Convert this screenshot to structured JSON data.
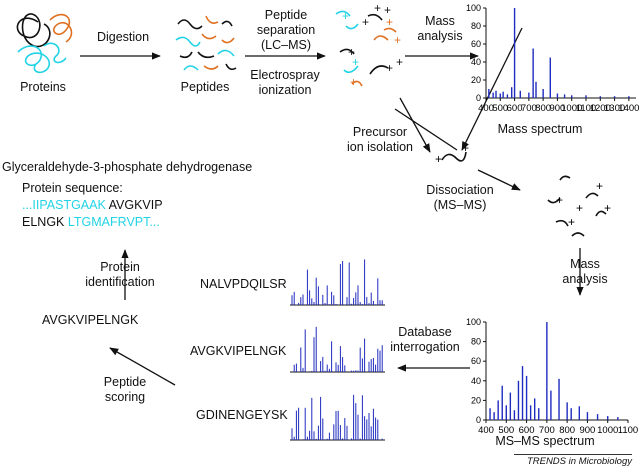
{
  "labels": {
    "proteins": "Proteins",
    "digestion": "Digestion",
    "peptides": "Peptides",
    "separation_line1": "Peptide",
    "separation_line2": "separation",
    "separation_line3": "(LC–MS)",
    "electrospray_line1": "Electrospray",
    "electrospray_line2": "ionization",
    "mass_line1": "Mass",
    "mass_line2": "analysis",
    "mass_spectrum": "Mass spectrum",
    "precursor_line1": "Precursor",
    "precursor_line2": "ion isolation",
    "dissociation_line1": "Dissociation",
    "dissociation_line2": "(MS–MS)",
    "mass2_line1": "Mass",
    "mass2_line2": "analysis",
    "database_line1": "Database",
    "database_line2": "interrogation",
    "msms_spectrum": "MS–MS spectrum",
    "identification_line1": "Protein",
    "identification_line2": "identification",
    "scoring_line1": "Peptide",
    "scoring_line2": "scoring"
  },
  "identification": {
    "protein_name": "Glyceraldehyde-3-phosphate dehydrogenase",
    "sequence_heading": "Protein sequence:",
    "seq_left": "...IIPASTGAAK",
    "seq_match1": "AVGKVIP",
    "seq_match2": "ELNGK",
    "seq_right": "LTGMAFRVPT...",
    "best_peptide": "AVGKVIPELNGK"
  },
  "candidates": [
    {
      "name": "NALVPDQILSR"
    },
    {
      "name": "AVGKVIPELNGK"
    },
    {
      "name": "GDINENGEYSK"
    }
  ],
  "credit": "TRENDS in Microbiology",
  "colors": {
    "spectrum": "#1f2bbf",
    "highlight": "#22d3e6",
    "orange": "#e07020"
  },
  "chart_data": [
    {
      "type": "bar",
      "xlim": [
        400,
        1450
      ],
      "ylim": [
        0,
        100
      ],
      "x_ticks": [
        400,
        500,
        600,
        700,
        800,
        900,
        1000,
        1100,
        1200,
        1300,
        1400
      ],
      "y_ticks": [
        0,
        20,
        40,
        60,
        80,
        100
      ],
      "peaks": [
        [
          420,
          10
        ],
        [
          450,
          6
        ],
        [
          470,
          8
        ],
        [
          500,
          5
        ],
        [
          520,
          7
        ],
        [
          550,
          4
        ],
        [
          580,
          12
        ],
        [
          600,
          100
        ],
        [
          640,
          8
        ],
        [
          700,
          6
        ],
        [
          730,
          55
        ],
        [
          750,
          18
        ],
        [
          800,
          10
        ],
        [
          850,
          45
        ],
        [
          900,
          5
        ],
        [
          950,
          4
        ],
        [
          1000,
          3
        ],
        [
          1100,
          3
        ],
        [
          1200,
          2
        ],
        [
          1300,
          2
        ],
        [
          1400,
          2
        ]
      ]
    },
    {
      "type": "bar",
      "xlim": [
        400,
        1100
      ],
      "ylim": [
        0,
        100
      ],
      "x_ticks": [
        400,
        500,
        600,
        700,
        800,
        900,
        1000,
        1100
      ],
      "y_ticks": [
        0,
        20,
        40,
        60,
        80,
        100
      ],
      "peaks": [
        [
          420,
          12
        ],
        [
          440,
          8
        ],
        [
          460,
          20
        ],
        [
          480,
          35
        ],
        [
          500,
          15
        ],
        [
          520,
          28
        ],
        [
          540,
          10
        ],
        [
          560,
          40
        ],
        [
          580,
          55
        ],
        [
          600,
          45
        ],
        [
          620,
          15
        ],
        [
          640,
          22
        ],
        [
          660,
          12
        ],
        [
          700,
          100
        ],
        [
          720,
          30
        ],
        [
          760,
          42
        ],
        [
          800,
          18
        ],
        [
          820,
          12
        ],
        [
          860,
          14
        ],
        [
          900,
          8
        ],
        [
          950,
          6
        ],
        [
          1000,
          4
        ],
        [
          1050,
          3
        ]
      ]
    }
  ]
}
